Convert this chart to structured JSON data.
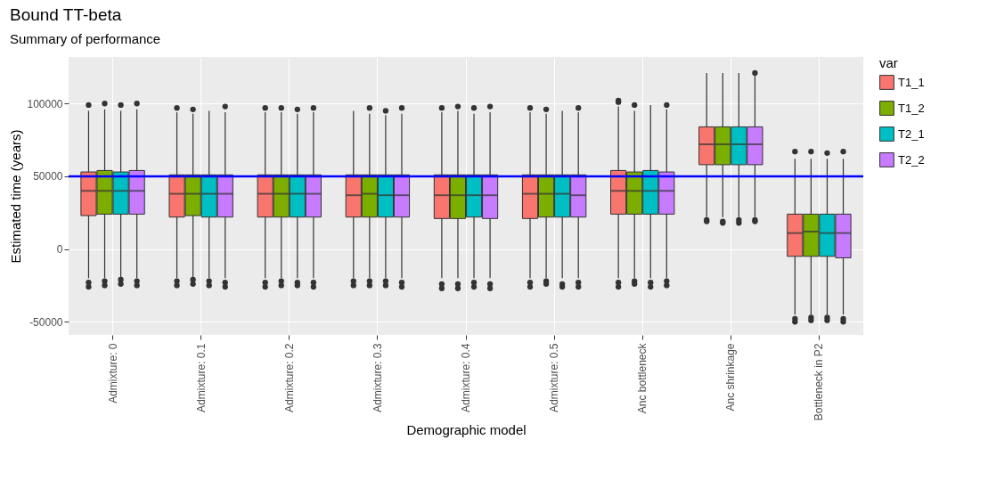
{
  "chart_data": {
    "type": "box",
    "title": "Bound TT-beta",
    "subtitle": "Summary of performance",
    "xlabel": "Demographic model",
    "ylabel": "Estimated time (years)",
    "legend_title": "var",
    "legend": "right",
    "grid": true,
    "categories": [
      "Admixture: 0",
      "Admixture: 0.1",
      "Admixture: 0.2",
      "Admixture: 0.3",
      "Admixture: 0.4",
      "Admixture: 0.5",
      "Anc bottleneck",
      "Anc shrinkage",
      "Bottleneck in P2"
    ],
    "ylim": [
      -59000,
      132000
    ],
    "yticks": [
      -50000,
      0,
      50000,
      100000
    ],
    "ref_lines": [
      {
        "axis": "y",
        "value": 50000,
        "color": "#0000ff"
      }
    ],
    "series": [
      {
        "name": "T1_1",
        "color": "#f8766d",
        "boxes": [
          {
            "low": -20000,
            "q1": 23000,
            "median": 40000,
            "q3": 53000,
            "high": 95000,
            "outliers": [
              -23000,
              -26000,
              99000
            ]
          },
          {
            "low": -20000,
            "q1": 22000,
            "median": 38000,
            "q3": 51000,
            "high": 94000,
            "outliers": [
              -22000,
              -25000,
              97000
            ]
          },
          {
            "low": -20000,
            "q1": 22000,
            "median": 38000,
            "q3": 51000,
            "high": 94000,
            "outliers": [
              -23000,
              -26000,
              97000
            ]
          },
          {
            "low": -20000,
            "q1": 22000,
            "median": 37000,
            "q3": 51000,
            "high": 95000,
            "outliers": [
              -22000,
              -25000
            ]
          },
          {
            "low": -20000,
            "q1": 21000,
            "median": 37000,
            "q3": 51000,
            "high": 94000,
            "outliers": [
              -24000,
              -27000,
              97000
            ]
          },
          {
            "low": -20000,
            "q1": 21000,
            "median": 38000,
            "q3": 51000,
            "high": 94000,
            "outliers": [
              -23000,
              -26000,
              97000
            ]
          },
          {
            "low": -20000,
            "q1": 24000,
            "median": 40000,
            "q3": 54000,
            "high": 98000,
            "outliers": [
              -23000,
              -26000,
              101000,
              102000
            ]
          },
          {
            "low": 22000,
            "q1": 58000,
            "median": 72000,
            "q3": 84000,
            "high": 121000,
            "outliers": [
              19000,
              20000
            ]
          },
          {
            "low": -45000,
            "q1": -5000,
            "median": 11000,
            "q3": 24000,
            "high": 62000,
            "outliers": [
              -48000,
              -50000,
              67000
            ]
          }
        ]
      },
      {
        "name": "T1_2",
        "color": "#7cae00",
        "boxes": [
          {
            "low": -20000,
            "q1": 24000,
            "median": 40000,
            "q3": 54000,
            "high": 96000,
            "outliers": [
              -22000,
              -25000,
              100000
            ]
          },
          {
            "low": -20000,
            "q1": 23000,
            "median": 38000,
            "q3": 51000,
            "high": 93000,
            "outliers": [
              -21000,
              -24000,
              96000
            ]
          },
          {
            "low": -20000,
            "q1": 22000,
            "median": 38000,
            "q3": 51000,
            "high": 94000,
            "outliers": [
              -22000,
              -25000,
              97000
            ]
          },
          {
            "low": -20000,
            "q1": 22000,
            "median": 38000,
            "q3": 51000,
            "high": 93000,
            "outliers": [
              -22000,
              -25000,
              97000
            ]
          },
          {
            "low": -20000,
            "q1": 21000,
            "median": 37000,
            "q3": 51000,
            "high": 95000,
            "outliers": [
              -24000,
              -27000,
              98000
            ]
          },
          {
            "low": -20000,
            "q1": 22000,
            "median": 38000,
            "q3": 51000,
            "high": 93000,
            "outliers": [
              -22000,
              -24000,
              96000
            ]
          },
          {
            "low": -20000,
            "q1": 24000,
            "median": 40000,
            "q3": 53000,
            "high": 95000,
            "outliers": [
              -22000,
              -24000,
              99000
            ]
          },
          {
            "low": 22000,
            "q1": 58000,
            "median": 72000,
            "q3": 84000,
            "high": 121000,
            "outliers": [
              18000,
              19000
            ]
          },
          {
            "low": -45000,
            "q1": -5000,
            "median": 12000,
            "q3": 24000,
            "high": 62000,
            "outliers": [
              -47000,
              -49000,
              67000
            ]
          }
        ]
      },
      {
        "name": "T2_1",
        "color": "#00bfc4",
        "boxes": [
          {
            "low": -20000,
            "q1": 24000,
            "median": 40000,
            "q3": 53000,
            "high": 95000,
            "outliers": [
              -21000,
              -24000,
              99000
            ]
          },
          {
            "low": -20000,
            "q1": 22000,
            "median": 38000,
            "q3": 51000,
            "high": 95000,
            "outliers": [
              -22000,
              -25000
            ]
          },
          {
            "low": -20000,
            "q1": 22000,
            "median": 38000,
            "q3": 51000,
            "high": 93000,
            "outliers": [
              -23000,
              -25000,
              96000
            ]
          },
          {
            "low": -20000,
            "q1": 22000,
            "median": 37000,
            "q3": 51000,
            "high": 92000,
            "outliers": [
              -22000,
              -25000,
              95000
            ]
          },
          {
            "low": -20000,
            "q1": 22000,
            "median": 37000,
            "q3": 51000,
            "high": 93000,
            "outliers": [
              -23000,
              -26000,
              97000
            ]
          },
          {
            "low": -20000,
            "q1": 22000,
            "median": 38000,
            "q3": 51000,
            "high": 95000,
            "outliers": [
              -24000,
              -26000
            ]
          },
          {
            "low": -20000,
            "q1": 24000,
            "median": 40000,
            "q3": 54000,
            "high": 99000,
            "outliers": [
              -23000,
              -26000
            ]
          },
          {
            "low": 22000,
            "q1": 58000,
            "median": 72000,
            "q3": 84000,
            "high": 121000,
            "outliers": [
              18000,
              20000
            ]
          },
          {
            "low": -45000,
            "q1": -5000,
            "median": 11000,
            "q3": 24000,
            "high": 62000,
            "outliers": [
              -47000,
              -49000,
              66000
            ]
          }
        ]
      },
      {
        "name": "T2_2",
        "color": "#c77cff",
        "boxes": [
          {
            "low": -20000,
            "q1": 24000,
            "median": 40000,
            "q3": 54000,
            "high": 96000,
            "outliers": [
              -22000,
              -25000,
              100000
            ]
          },
          {
            "low": -20000,
            "q1": 22000,
            "median": 38000,
            "q3": 51000,
            "high": 94000,
            "outliers": [
              -23000,
              -26000,
              98000
            ]
          },
          {
            "low": -20000,
            "q1": 22000,
            "median": 38000,
            "q3": 51000,
            "high": 94000,
            "outliers": [
              -23000,
              -26000,
              97000
            ]
          },
          {
            "low": -20000,
            "q1": 22000,
            "median": 37000,
            "q3": 51000,
            "high": 93000,
            "outliers": [
              -23000,
              -26000,
              97000
            ]
          },
          {
            "low": -20000,
            "q1": 21000,
            "median": 37000,
            "q3": 51000,
            "high": 94000,
            "outliers": [
              -24000,
              -27000,
              98000
            ]
          },
          {
            "low": -20000,
            "q1": 22000,
            "median": 37000,
            "q3": 51000,
            "high": 94000,
            "outliers": [
              -23000,
              -26000,
              97000
            ]
          },
          {
            "low": -20000,
            "q1": 24000,
            "median": 40000,
            "q3": 53000,
            "high": 96000,
            "outliers": [
              -22000,
              -25000,
              99000
            ]
          },
          {
            "low": 22000,
            "q1": 58000,
            "median": 72000,
            "q3": 84000,
            "high": 119000,
            "outliers": [
              19000,
              20000,
              121000
            ]
          },
          {
            "low": -45000,
            "q1": -6000,
            "median": 11000,
            "q3": 24000,
            "high": 62000,
            "outliers": [
              -48000,
              -50000,
              67000
            ]
          }
        ]
      }
    ]
  }
}
